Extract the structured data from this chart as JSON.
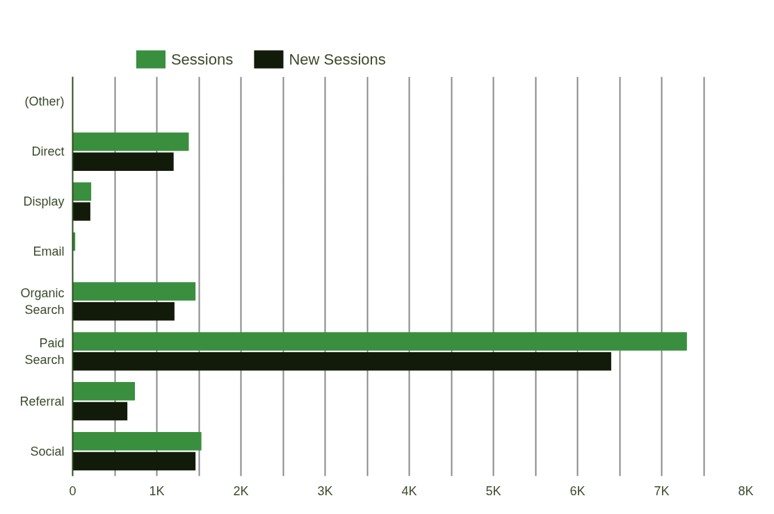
{
  "chart_data": {
    "type": "bar",
    "orientation": "horizontal",
    "categories": [
      "(Other)",
      "Direct",
      "Display",
      "Email",
      "Organic Search",
      "Paid Search",
      "Referral",
      "Social"
    ],
    "series": [
      {
        "name": "Sessions",
        "color": "#3a8f3f",
        "values": [
          0,
          1380,
          220,
          30,
          1460,
          7300,
          740,
          1530
        ]
      },
      {
        "name": "New Sessions",
        "color": "#121a0a",
        "values": [
          0,
          1200,
          210,
          0,
          1210,
          6400,
          650,
          1460
        ]
      }
    ],
    "xlim": [
      0,
      8000
    ],
    "xticks": [
      {
        "value": 0,
        "label": "0"
      },
      {
        "value": 500,
        "label": null
      },
      {
        "value": 1000,
        "label": "1K"
      },
      {
        "value": 1500,
        "label": null
      },
      {
        "value": 2000,
        "label": "2K"
      },
      {
        "value": 2500,
        "label": null
      },
      {
        "value": 3000,
        "label": "3K"
      },
      {
        "value": 3500,
        "label": null
      },
      {
        "value": 4000,
        "label": "4K"
      },
      {
        "value": 4500,
        "label": null
      },
      {
        "value": 5000,
        "label": "5K"
      },
      {
        "value": 5500,
        "label": null
      },
      {
        "value": 6000,
        "label": "6K"
      },
      {
        "value": 6500,
        "label": null
      },
      {
        "value": 7000,
        "label": "7K"
      },
      {
        "value": 7500,
        "label": null
      },
      {
        "value": 8000,
        "label": "8K"
      }
    ],
    "grid": "x",
    "legend": "top left"
  }
}
